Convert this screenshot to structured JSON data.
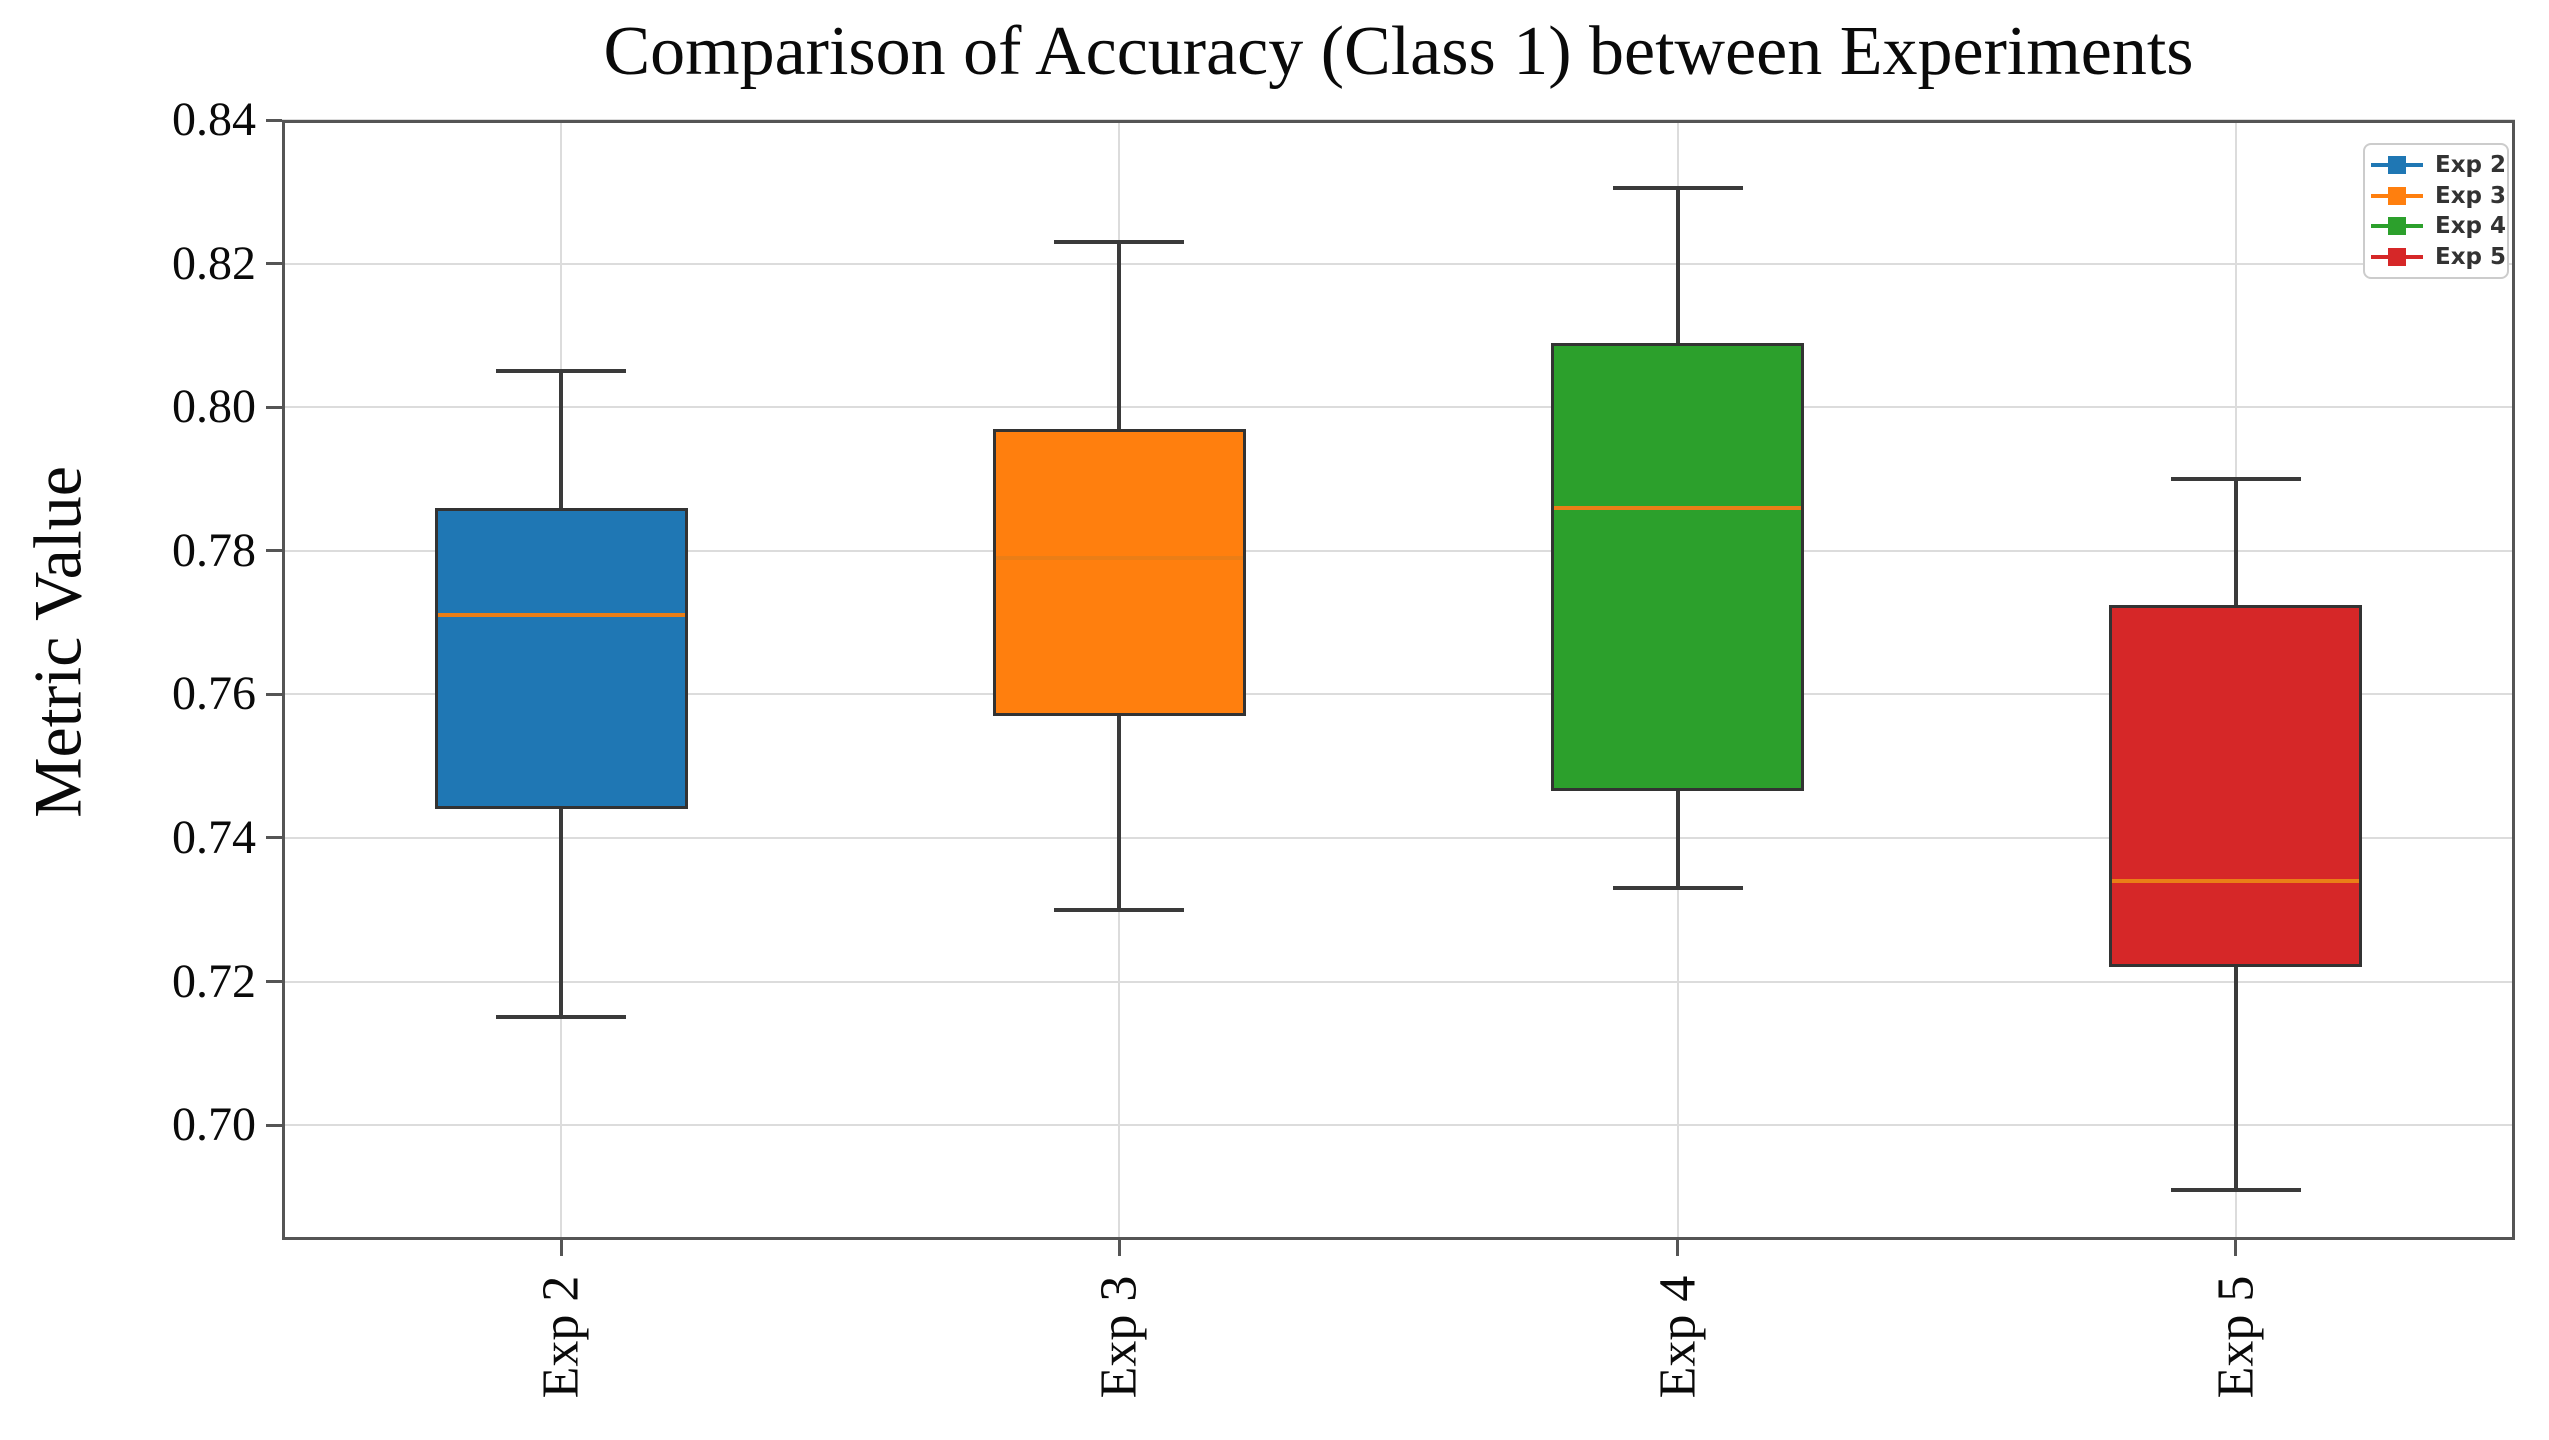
{
  "figure": {
    "title": "Comparison of Accuracy (Class 1) between Experiments",
    "ylabel": "Metric Value"
  },
  "chart_data": {
    "type": "boxplot",
    "title": "Comparison of Accuracy (Class 1) between Experiments",
    "xlabel": "",
    "ylabel": "Metric Value",
    "categories": [
      "Exp 2",
      "Exp 3",
      "Exp 4",
      "Exp 5"
    ],
    "series": [
      {
        "name": "Exp 2",
        "color": "#1f77b4",
        "whisker_low": 0.715,
        "q1": 0.744,
        "median": 0.771,
        "q3": 0.786,
        "whisker_high": 0.805
      },
      {
        "name": "Exp 3",
        "color": "#ff7f0e",
        "whisker_low": 0.73,
        "q1": 0.757,
        "median": 0.779,
        "q3": 0.797,
        "whisker_high": 0.823
      },
      {
        "name": "Exp 4",
        "color": "#2ca02c",
        "whisker_low": 0.733,
        "q1": 0.7465,
        "median": 0.786,
        "q3": 0.809,
        "whisker_high": 0.8305
      },
      {
        "name": "Exp 5",
        "color": "#d62728",
        "whisker_low": 0.691,
        "q1": 0.722,
        "median": 0.734,
        "q3": 0.7725,
        "whisker_high": 0.79
      }
    ],
    "ylim": [
      0.684,
      0.84
    ],
    "yticks": [
      0.84,
      0.82,
      0.8,
      0.78,
      0.76,
      0.74,
      0.72,
      0.7
    ],
    "ytick_labels": [
      "0.84",
      "0.82",
      "0.80",
      "0.78",
      "0.76",
      "0.74",
      "0.72",
      "0.70"
    ],
    "grid": true,
    "legend": {
      "position": "upper right",
      "entries": [
        {
          "label": "Exp 2",
          "color": "#1f77b4"
        },
        {
          "label": "Exp 3",
          "color": "#ff7f0e"
        },
        {
          "label": "Exp 4",
          "color": "#2ca02c"
        },
        {
          "label": "Exp 5",
          "color": "#d62728"
        }
      ]
    },
    "colors": {
      "median_line": "#ea7e17",
      "box_edge": "#333333",
      "whisker": "#3a3a3a",
      "frame": "#555555",
      "grid": "#dcdcdc",
      "background": "#ffffff"
    }
  }
}
